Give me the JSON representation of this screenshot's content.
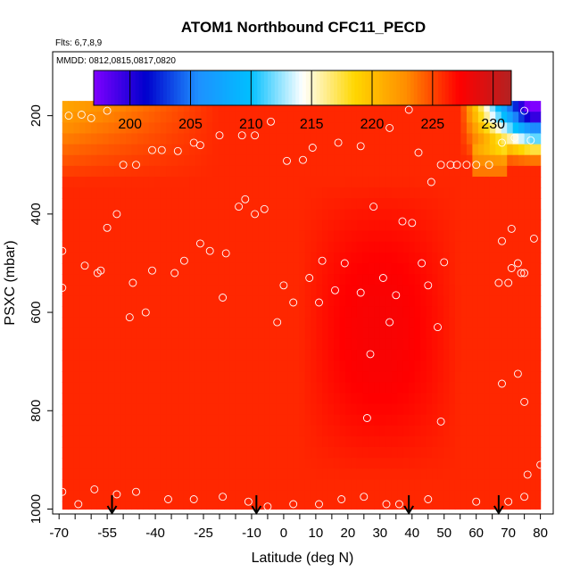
{
  "chart_data": {
    "type": "heatmap",
    "title": "ATOM1 Northbound CFC11_PECD",
    "annotations": {
      "flights": "Flts: 6,7,8,9",
      "dates": "MMDD: 0812,0815,0817,0820"
    },
    "xlabel": "Latitude (deg N)",
    "ylabel": "PSXC (mbar)",
    "xlim": [
      -72,
      84
    ],
    "ylim": [
      1010,
      70
    ],
    "x_ticks": [
      -70,
      -55,
      -40,
      -25,
      -10,
      0,
      10,
      20,
      30,
      40,
      50,
      60,
      70,
      80
    ],
    "x_tick_labels": [
      "-70",
      "-55",
      "-40",
      "-25",
      "-10",
      "0",
      "10",
      "20",
      "30",
      "40",
      "50",
      "60",
      "70",
      "80"
    ],
    "y_ticks": [
      200,
      400,
      600,
      800,
      1000
    ],
    "y_tick_labels": [
      "200",
      "400",
      "600",
      "800",
      "1000"
    ],
    "colorbar": {
      "range": [
        197,
        231.5
      ],
      "ticks": [
        200,
        205,
        210,
        215,
        220,
        225,
        230
      ],
      "tick_labels": [
        "200",
        "205",
        "210",
        "215",
        "220",
        "225",
        "230"
      ],
      "colors": [
        "#7f00ff",
        "#0000cd",
        "#1e90ff",
        "#00bfff",
        "#ffffff",
        "#ffd700",
        "#ff8c00",
        "#ff0000",
        "#b22222"
      ]
    },
    "field_extent": {
      "lat": [
        -69,
        80
      ],
      "p_top": 170,
      "p_bottom": 1000
    },
    "sample_points": [
      {
        "lat": -67,
        "p": 200
      },
      {
        "lat": -63,
        "p": 198
      },
      {
        "lat": -60,
        "p": 205
      },
      {
        "lat": -55,
        "p": 190
      },
      {
        "lat": -69,
        "p": 475
      },
      {
        "lat": -69,
        "p": 550
      },
      {
        "lat": -62,
        "p": 505
      },
      {
        "lat": -58,
        "p": 520
      },
      {
        "lat": -57,
        "p": 515
      },
      {
        "lat": -55,
        "p": 428
      },
      {
        "lat": -52,
        "p": 400
      },
      {
        "lat": -50,
        "p": 300
      },
      {
        "lat": -46,
        "p": 300
      },
      {
        "lat": -41,
        "p": 270
      },
      {
        "lat": -38,
        "p": 270
      },
      {
        "lat": -33,
        "p": 272
      },
      {
        "lat": -28,
        "p": 255
      },
      {
        "lat": -26,
        "p": 260
      },
      {
        "lat": -20,
        "p": 240
      },
      {
        "lat": -13,
        "p": 240
      },
      {
        "lat": -9,
        "p": 240
      },
      {
        "lat": -4,
        "p": 212
      },
      {
        "lat": 1,
        "p": 292
      },
      {
        "lat": 6,
        "p": 290
      },
      {
        "lat": 9,
        "p": 265
      },
      {
        "lat": 17,
        "p": 255
      },
      {
        "lat": 24,
        "p": 262
      },
      {
        "lat": 33,
        "p": 225
      },
      {
        "lat": 39,
        "p": 188
      },
      {
        "lat": 42,
        "p": 275
      },
      {
        "lat": 46,
        "p": 335
      },
      {
        "lat": 49,
        "p": 300
      },
      {
        "lat": 52,
        "p": 300
      },
      {
        "lat": 54,
        "p": 300
      },
      {
        "lat": 57,
        "p": 300
      },
      {
        "lat": 60,
        "p": 300
      },
      {
        "lat": 64,
        "p": 300
      },
      {
        "lat": 68,
        "p": 255
      },
      {
        "lat": 72,
        "p": 245
      },
      {
        "lat": 75,
        "p": 190
      },
      {
        "lat": 77,
        "p": 250
      },
      {
        "lat": 73,
        "p": 500
      },
      {
        "lat": 71,
        "p": 510
      },
      {
        "lat": 70,
        "p": 540
      },
      {
        "lat": 68,
        "p": 455
      },
      {
        "lat": 67,
        "p": 540
      },
      {
        "lat": 74,
        "p": 520
      },
      {
        "lat": 75,
        "p": 520
      },
      {
        "lat": 78,
        "p": 450
      },
      {
        "lat": 71,
        "p": 430
      },
      {
        "lat": -48,
        "p": 610
      },
      {
        "lat": -47,
        "p": 540
      },
      {
        "lat": -43,
        "p": 600
      },
      {
        "lat": -41,
        "p": 515
      },
      {
        "lat": -34,
        "p": 520
      },
      {
        "lat": -31,
        "p": 495
      },
      {
        "lat": -26,
        "p": 460
      },
      {
        "lat": -23,
        "p": 475
      },
      {
        "lat": -19,
        "p": 570
      },
      {
        "lat": -18,
        "p": 480
      },
      {
        "lat": -14,
        "p": 385
      },
      {
        "lat": -12,
        "p": 370
      },
      {
        "lat": -9,
        "p": 400
      },
      {
        "lat": -6,
        "p": 390
      },
      {
        "lat": -2,
        "p": 620
      },
      {
        "lat": 0,
        "p": 545
      },
      {
        "lat": 3,
        "p": 580
      },
      {
        "lat": 8,
        "p": 530
      },
      {
        "lat": 11,
        "p": 580
      },
      {
        "lat": 12,
        "p": 495
      },
      {
        "lat": 16,
        "p": 555
      },
      {
        "lat": 19,
        "p": 500
      },
      {
        "lat": 24,
        "p": 560
      },
      {
        "lat": 28,
        "p": 385
      },
      {
        "lat": 31,
        "p": 530
      },
      {
        "lat": 33,
        "p": 620
      },
      {
        "lat": 35,
        "p": 565
      },
      {
        "lat": 37,
        "p": 415
      },
      {
        "lat": 40,
        "p": 418
      },
      {
        "lat": 43,
        "p": 500
      },
      {
        "lat": 45,
        "p": 545
      },
      {
        "lat": 48,
        "p": 630
      },
      {
        "lat": 50,
        "p": 498
      },
      {
        "lat": 27,
        "p": 685
      },
      {
        "lat": 26,
        "p": 815
      },
      {
        "lat": 49,
        "p": 822
      },
      {
        "lat": 68,
        "p": 745
      },
      {
        "lat": 73,
        "p": 725
      },
      {
        "lat": 75,
        "p": 782
      },
      {
        "lat": 76,
        "p": 930
      },
      {
        "lat": 80,
        "p": 910
      },
      {
        "lat": -69,
        "p": 965
      },
      {
        "lat": -64,
        "p": 990
      },
      {
        "lat": -59,
        "p": 960
      },
      {
        "lat": -52,
        "p": 970
      },
      {
        "lat": -46,
        "p": 965
      },
      {
        "lat": -36,
        "p": 980
      },
      {
        "lat": -28,
        "p": 980
      },
      {
        "lat": -19,
        "p": 975
      },
      {
        "lat": -11,
        "p": 985
      },
      {
        "lat": -5,
        "p": 995
      },
      {
        "lat": 3,
        "p": 990
      },
      {
        "lat": 11,
        "p": 990
      },
      {
        "lat": 18,
        "p": 980
      },
      {
        "lat": 25,
        "p": 975
      },
      {
        "lat": 32,
        "p": 990
      },
      {
        "lat": 36,
        "p": 990
      },
      {
        "lat": 45,
        "p": 980
      },
      {
        "lat": 60,
        "p": 985
      },
      {
        "lat": 70,
        "p": 985
      },
      {
        "lat": 75,
        "p": 975
      }
    ],
    "flight_markers_lat": [
      -53.5,
      -8.5,
      39,
      67
    ]
  }
}
